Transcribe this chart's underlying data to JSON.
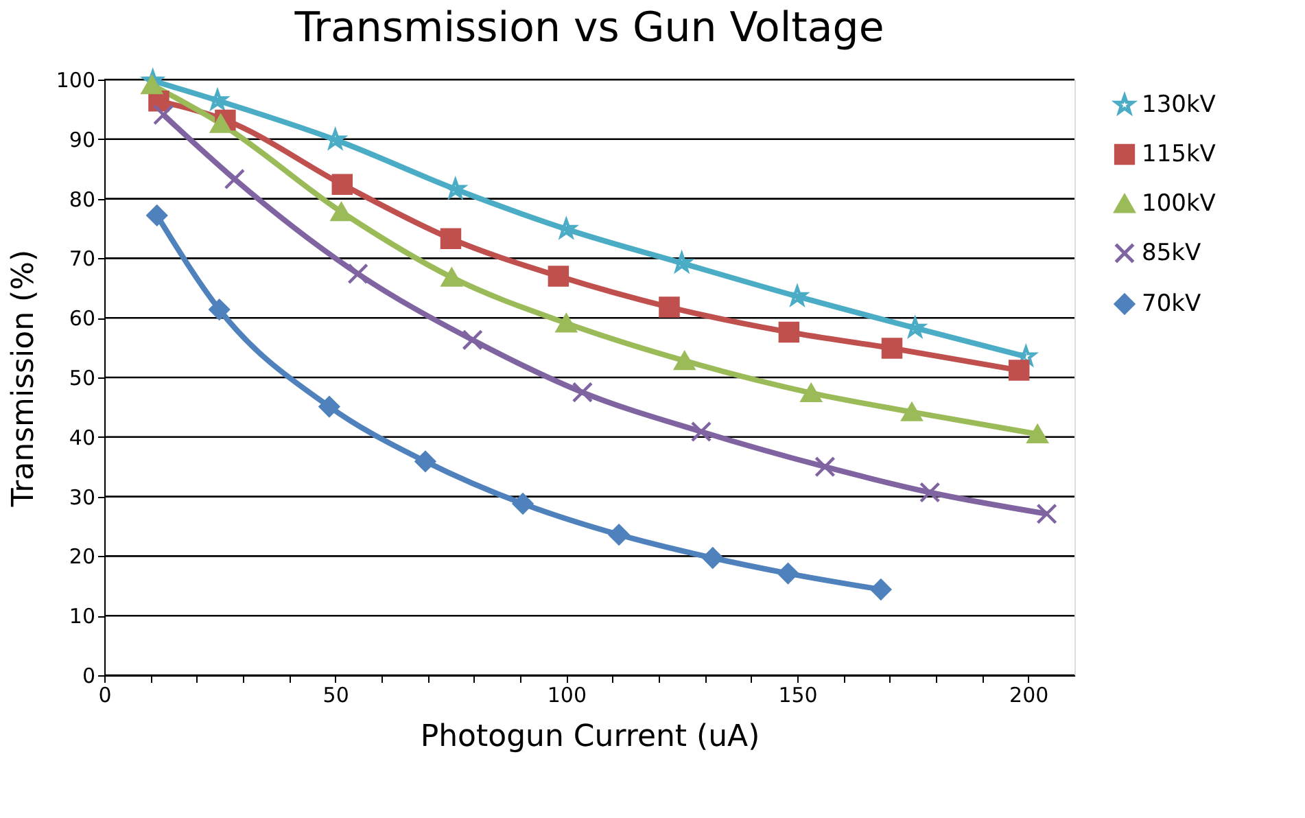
{
  "chart_data": {
    "type": "line",
    "title": "Transmission vs Gun Voltage",
    "xlabel": "Photogun Current (uA)",
    "ylabel": "Transmission (%)",
    "xlim": [
      0,
      210
    ],
    "ylim": [
      0,
      100
    ],
    "xticks": [
      0,
      {
        "value": 10,
        "label": null
      },
      {
        "value": 20,
        "label": null
      },
      {
        "value": 30,
        "label": null
      },
      {
        "value": 40,
        "label": null
      },
      50,
      {
        "value": 60,
        "label": null
      },
      {
        "value": 70,
        "label": null
      },
      {
        "value": 80,
        "label": null
      },
      {
        "value": 90,
        "label": null
      },
      100,
      {
        "value": 110,
        "label": null
      },
      {
        "value": 120,
        "label": null
      },
      {
        "value": 130,
        "label": null
      },
      {
        "value": 140,
        "label": null
      },
      150,
      {
        "value": 160,
        "label": null
      },
      {
        "value": 170,
        "label": null
      },
      {
        "value": 180,
        "label": null
      },
      {
        "value": 190,
        "label": null
      },
      200
    ],
    "yticks": [
      0,
      10,
      20,
      30,
      40,
      50,
      60,
      70,
      80,
      90,
      100
    ],
    "grid": "y",
    "legend": "right",
    "series": [
      {
        "name": "130kV",
        "color": "#4bacc6",
        "marker": "star",
        "x": [
          10.5,
          24.5,
          50,
          76,
          100,
          125,
          150,
          175.5,
          199.5
        ],
        "values": [
          99.8,
          96.5,
          89.9,
          81.6,
          74.9,
          69.2,
          63.6,
          58.3,
          53.5
        ]
      },
      {
        "name": "115kV",
        "color": "#c0504d",
        "marker": "square",
        "x": [
          11.8,
          26.2,
          51.5,
          75,
          98.3,
          122.3,
          148.2,
          170.5,
          198
        ],
        "values": [
          96.4,
          93.2,
          82.4,
          73.3,
          67.0,
          61.8,
          57.6,
          54.9,
          51.2
        ]
      },
      {
        "name": "100kV",
        "color": "#9bbb59",
        "marker": "triangle",
        "x": [
          10.3,
          25.2,
          51.3,
          75.2,
          100,
          125.6,
          153,
          174.8,
          202
        ],
        "values": [
          99.1,
          92.6,
          77.8,
          66.8,
          59.1,
          52.8,
          47.4,
          44.2,
          40.5
        ]
      },
      {
        "name": "85kV",
        "color": "#8064a2",
        "marker": "cross",
        "x": [
          12.8,
          28.2,
          54.9,
          79.7,
          103.5,
          129.2,
          156,
          178.7,
          204
        ],
        "values": [
          94.1,
          83.3,
          67.4,
          56.3,
          47.5,
          40.9,
          35.0,
          30.7,
          27.1
        ]
      },
      {
        "name": "70kV",
        "color": "#4f81bd",
        "marker": "diamond",
        "x": [
          11.4,
          24.9,
          48.7,
          69.5,
          90.6,
          111.4,
          131.7,
          148,
          168.1
        ],
        "values": [
          77.2,
          61.4,
          45.1,
          35.9,
          28.8,
          23.6,
          19.7,
          17.1,
          14.4
        ]
      }
    ]
  }
}
